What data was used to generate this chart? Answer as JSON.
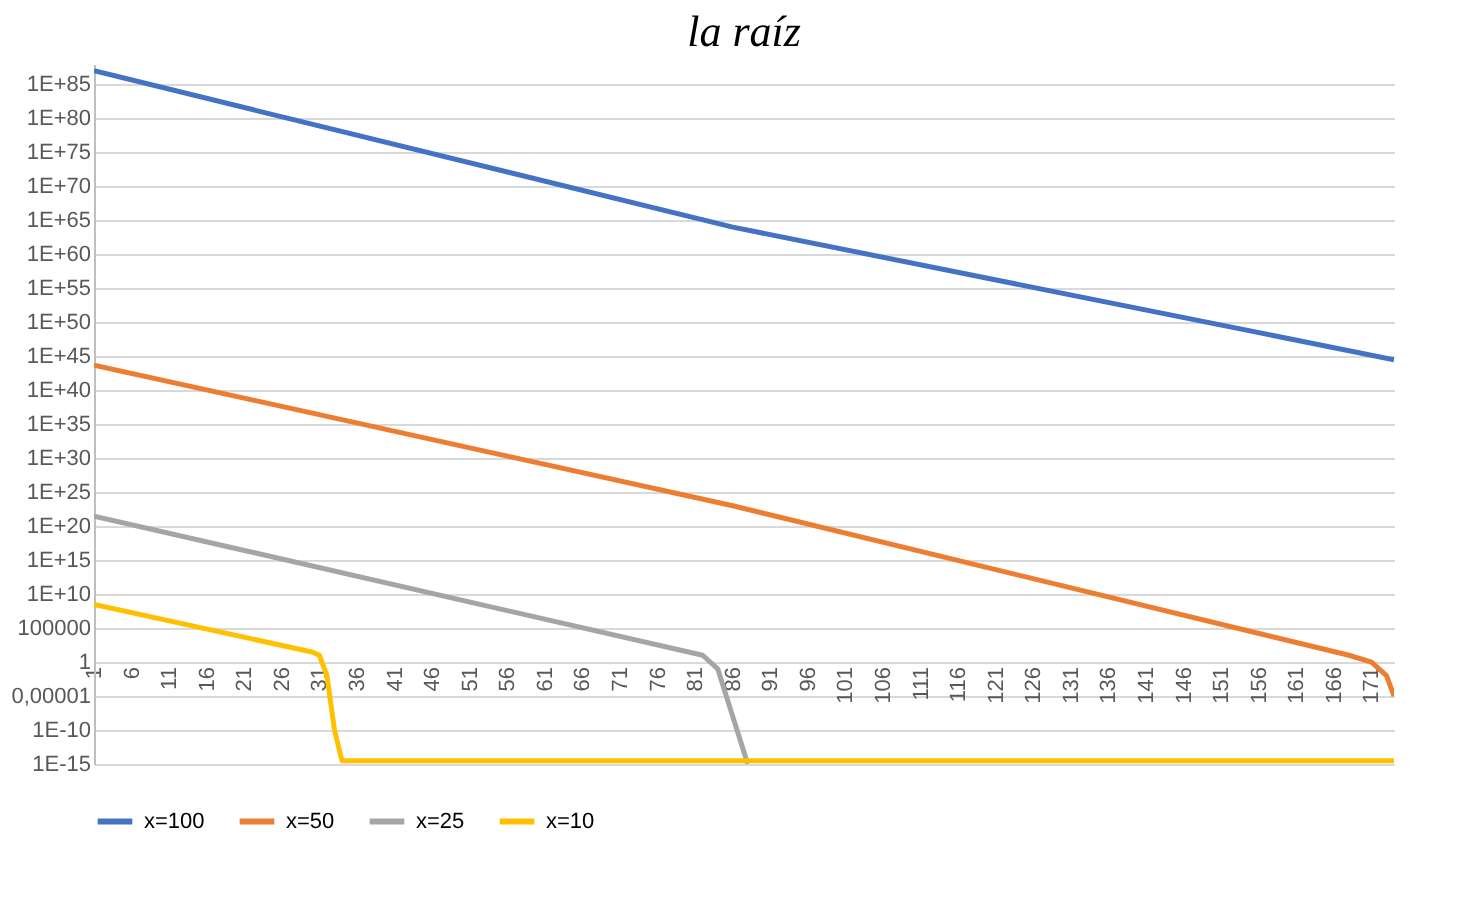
{
  "chart_data": {
    "type": "line",
    "title": "la raíz",
    "xlim": [
      1,
      174
    ],
    "xticks": [
      1,
      6,
      11,
      16,
      21,
      26,
      31,
      36,
      41,
      46,
      51,
      56,
      61,
      66,
      71,
      76,
      81,
      86,
      91,
      96,
      101,
      106,
      111,
      116,
      121,
      126,
      131,
      136,
      141,
      146,
      151,
      156,
      161,
      166,
      171
    ],
    "ylim": [
      1e-15,
      1e+88
    ],
    "log": "y",
    "grid": "y",
    "legend": "bottom",
    "yticks": [
      {
        "value": 1e-15,
        "label": "1E-15"
      },
      {
        "value": 1e-10,
        "label": "1E-10"
      },
      {
        "value": 1e-05,
        "label": "0,00001"
      },
      {
        "value": 1,
        "label": "1"
      },
      {
        "value": 100000.0,
        "label": "100000"
      },
      {
        "value": 10000000000.0,
        "label": "1E+10"
      },
      {
        "value": 1000000000000000.0,
        "label": "1E+15"
      },
      {
        "value": 1e+20,
        "label": "1E+20"
      },
      {
        "value": 1e+25,
        "label": "1E+25"
      },
      {
        "value": 1e+30,
        "label": "1E+30"
      },
      {
        "value": 1e+35,
        "label": "1E+35"
      },
      {
        "value": 1e+40,
        "label": "1E+40"
      },
      {
        "value": 1e+45,
        "label": "1E+45"
      },
      {
        "value": 1e+50,
        "label": "1E+50"
      },
      {
        "value": 1e+55,
        "label": "1E+55"
      },
      {
        "value": 1e+60,
        "label": "1E+60"
      },
      {
        "value": 1e+65,
        "label": "1E+65"
      },
      {
        "value": 1e+70,
        "label": "1E+70"
      },
      {
        "value": 1e+75,
        "label": "1E+75"
      },
      {
        "value": 1e+80,
        "label": "1E+80"
      },
      {
        "value": 1e+85,
        "label": "1E+85"
      }
    ],
    "series": [
      {
        "name": "x=100",
        "color": "#4472c4",
        "x": [
          1,
          86,
          174
        ],
        "values": [
          1e+87,
          1e+64,
          3e+44
        ]
      },
      {
        "name": "x=50",
        "color": "#ed7d31",
        "x": [
          1,
          86,
          168,
          171,
          173,
          174
        ],
        "values": [
          5e+43,
          1e+23,
          10,
          1,
          0.01,
          1e-05
        ]
      },
      {
        "name": "x=25",
        "color": "#a5a5a5",
        "x": [
          1,
          82,
          84,
          86,
          88
        ],
        "values": [
          3e+21,
          10,
          0.1,
          1e-08,
          1e-15
        ]
      },
      {
        "name": "x=10",
        "color": "#ffc000",
        "x": [
          1,
          30,
          31,
          32,
          33,
          34,
          174
        ],
        "values": [
          300000000.0,
          30,
          10,
          0.01,
          1e-10,
          3e-15,
          3e-15
        ]
      }
    ]
  }
}
